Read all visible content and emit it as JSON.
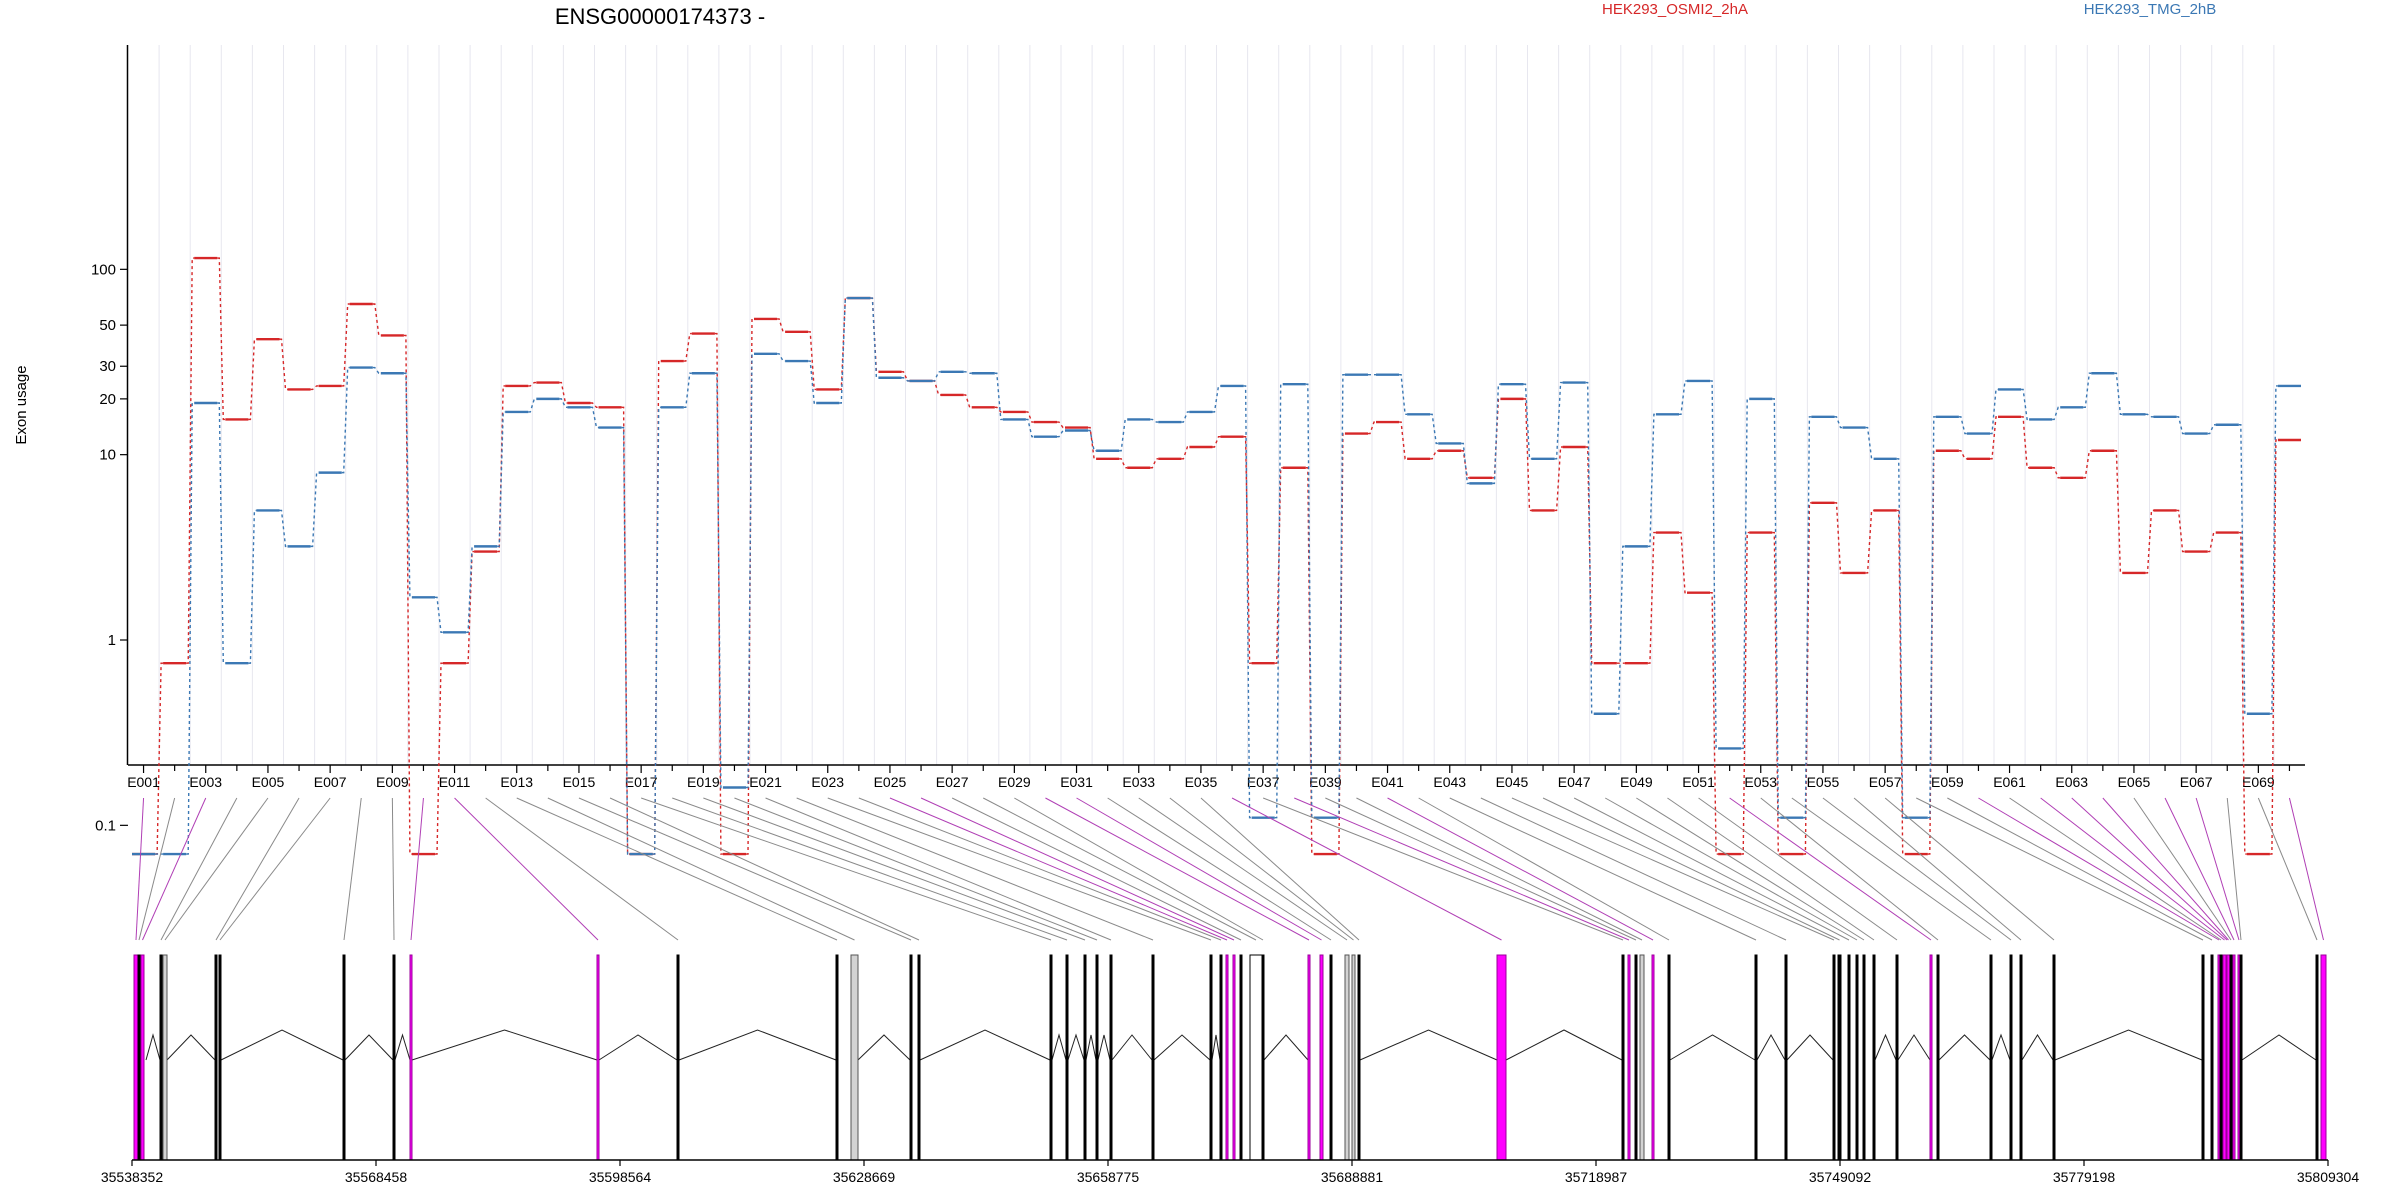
{
  "chart_data": {
    "type": "line",
    "title": "ENSG00000174373 -",
    "ylabel": "Exon usage",
    "yscale": "log",
    "y_ticks": [
      0.1,
      1,
      10,
      20,
      30,
      50,
      100
    ],
    "y_tick_labels": [
      "0.1",
      "1",
      "10",
      "20",
      "30",
      "50",
      "100"
    ],
    "legend_position": "top-right",
    "colors": {
      "series1": "#d62728",
      "series2": "#3b78b4",
      "constitutive_exon": "#ff00ff",
      "tested_exon": "#d3d3d3"
    },
    "x_tick_labels": [
      "E001",
      "E003",
      "E005",
      "E007",
      "E009",
      "E011",
      "E013",
      "E015",
      "E017",
      "E019",
      "E021",
      "E023",
      "E025",
      "E027",
      "E029",
      "E031",
      "E033",
      "E035",
      "E037",
      "E039",
      "E041",
      "E043",
      "E045",
      "E047",
      "E049",
      "E051",
      "E053",
      "E055",
      "E057",
      "E059",
      "E061",
      "E063",
      "E065",
      "E067",
      "E069"
    ],
    "categories": [
      "E001",
      "E002",
      "E003",
      "E004",
      "E005",
      "E006",
      "E007",
      "E008",
      "E009",
      "E010",
      "E011",
      "E012",
      "E013",
      "E014",
      "E015",
      "E016",
      "E017",
      "E018",
      "E019",
      "E020",
      "E021",
      "E022",
      "E023",
      "E024",
      "E025",
      "E026",
      "E027",
      "E028",
      "E029",
      "E030",
      "E031",
      "E032",
      "E033",
      "E034",
      "E035",
      "E036",
      "E037",
      "E038",
      "E039",
      "E040",
      "E041",
      "E042",
      "E043",
      "E044",
      "E045",
      "E046",
      "E047",
      "E048",
      "E049",
      "E050",
      "E051",
      "E052",
      "E053",
      "E054",
      "E055",
      "E056",
      "E057",
      "E058",
      "E059",
      "E060",
      "E061",
      "E062",
      "E063",
      "E064",
      "E065",
      "E066",
      "E067",
      "E068",
      "E069",
      "E070"
    ],
    "series": [
      {
        "name": "HEK293_OSMI2_2hA",
        "values": [
          0.07,
          0.75,
          115,
          15.5,
          42,
          22.5,
          23.5,
          65,
          44,
          0.07,
          0.75,
          3,
          23.5,
          24.5,
          19,
          18,
          0.07,
          32,
          45,
          0.07,
          54,
          46,
          22.5,
          70,
          28,
          25,
          21,
          18,
          17,
          15,
          14,
          9.5,
          8.5,
          9.5,
          11,
          12.5,
          0.75,
          8.5,
          0.07,
          13,
          15,
          9.5,
          10.5,
          7.5,
          20,
          5,
          11,
          0.75,
          0.75,
          3.8,
          1.8,
          0.07,
          3.8,
          0.07,
          5.5,
          2.3,
          5,
          0.07,
          10.5,
          9.5,
          16,
          8.5,
          7.5,
          10.5,
          2.3,
          5,
          3,
          3.8,
          0.07,
          12
        ]
      },
      {
        "name": "HEK293_TMG_2hB",
        "values": [
          0.07,
          0.07,
          19,
          0.75,
          5,
          3.2,
          8,
          29.5,
          27.5,
          1.7,
          1.1,
          3.2,
          17,
          20,
          18,
          14,
          0.07,
          18,
          27.5,
          0.16,
          35,
          32,
          19,
          70,
          26,
          25,
          28,
          27.5,
          15.5,
          12.5,
          13.5,
          10.5,
          15.5,
          15,
          17,
          23.5,
          0.11,
          24,
          0.11,
          27,
          27,
          16.5,
          11.5,
          7,
          24,
          9.5,
          24.5,
          0.4,
          3.2,
          16.5,
          25,
          0.26,
          20,
          0.11,
          16,
          14,
          9.5,
          0.11,
          16,
          13,
          22.5,
          15.5,
          18,
          27.5,
          16.5,
          16,
          13,
          14.5,
          0.4,
          23.5
        ]
      }
    ],
    "genomic_axis_labels": [
      "35538352",
      "35568458",
      "35598564",
      "35628669",
      "35658775",
      "35688881",
      "35718987",
      "35749092",
      "35779198",
      "35809304"
    ]
  }
}
